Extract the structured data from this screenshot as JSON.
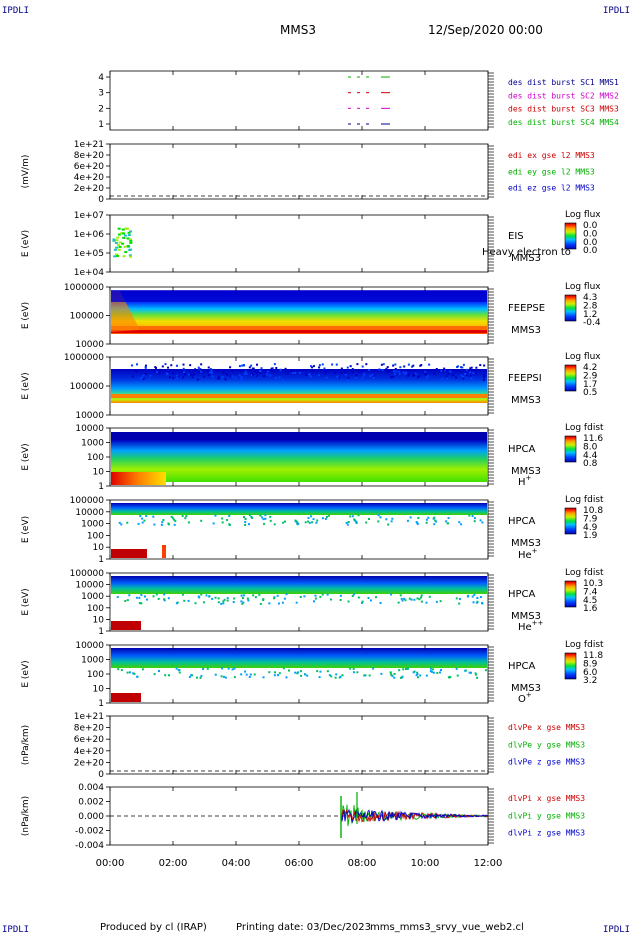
{
  "header": {
    "spacecraft": "MMS3",
    "date": "12/Sep/2020 00:00",
    "corner_left": "IPDLI",
    "corner_right": "IPDLI"
  },
  "footer": {
    "produced": "Produced by cl (IRAP)",
    "printing": "Printing date: 03/Dec/2023",
    "script": "mms_mms3_srvy_vue_web2.cl"
  },
  "colors": {
    "mms1": "#00008b",
    "mms2": "#d000d0",
    "mms3": "#cc0000",
    "mms4": "#00b000",
    "x": "#cc0000",
    "y": "#00b000",
    "z": "#0000cc"
  },
  "chart_data": [
    {
      "id": "burst",
      "type": "scatter",
      "yticks": [
        "1",
        "2",
        "3",
        "4"
      ],
      "legend": [
        {
          "label": "des dist burst SC1 MMS1",
          "color": "#00008b"
        },
        {
          "label": "des dist burst SC2 MMS2",
          "color": "#d000d0"
        },
        {
          "label": "des dist burst SC3 MMS3",
          "color": "#cc0000"
        },
        {
          "label": "des dist burst SC4 MMS4",
          "color": "#00b000"
        }
      ]
    },
    {
      "id": "edi",
      "type": "line",
      "ylabel": "(mV/m)",
      "yticks": [
        "0",
        "2e+20",
        "4e+20",
        "6e+20",
        "8e+20",
        "1e+21"
      ],
      "legend": [
        {
          "label": "edi ex gse l2 MMS3",
          "color": "#cc0000"
        },
        {
          "label": "edi ey gse l2 MMS3",
          "color": "#00b000"
        },
        {
          "label": "edi ez gse l2 MMS3",
          "color": "#0000cc"
        }
      ]
    },
    {
      "id": "eis",
      "type": "heatmap",
      "ylabel": "E (eV)",
      "yticks": [
        "1e+04",
        "1e+05",
        "1e+06",
        "1e+07"
      ],
      "right": [
        "EIS",
        "MMS3"
      ],
      "overlay": "Heavy electron to",
      "cbar_title": "Log flux",
      "cbar_ticks": [
        "0.0",
        "0.0",
        "0.0",
        "0.0"
      ]
    },
    {
      "id": "feepse",
      "type": "heatmap",
      "ylabel": "E (eV)",
      "yticks": [
        "10000",
        "100000",
        "1000000"
      ],
      "right": [
        "FEEPSE",
        "MMS3"
      ],
      "cbar_title": "Log flux",
      "cbar_ticks": [
        "4.3",
        "2.8",
        "1.2",
        "-0.4"
      ]
    },
    {
      "id": "feepsi",
      "type": "heatmap",
      "ylabel": "E (eV)",
      "yticks": [
        "10000",
        "100000",
        "1000000"
      ],
      "right": [
        "FEEPSI",
        "MMS3"
      ],
      "cbar_title": "Log flux",
      "cbar_ticks": [
        "4.2",
        "2.9",
        "1.7",
        "0.5"
      ]
    },
    {
      "id": "hpca_h",
      "type": "heatmap",
      "ylabel": "E (eV)",
      "yticks": [
        "1",
        "10",
        "100",
        "1000",
        "10000"
      ],
      "right": [
        "HPCA",
        "MMS3"
      ],
      "species": "H",
      "species_sup": "+",
      "cbar_title": "Log fdist",
      "cbar_ticks": [
        "11.6",
        "8.0",
        "4.4",
        "0.8"
      ]
    },
    {
      "id": "hpca_he",
      "type": "heatmap",
      "ylabel": "E (eV)",
      "yticks": [
        "1",
        "10",
        "100",
        "1000",
        "10000",
        "100000"
      ],
      "right": [
        "HPCA",
        "MMS3"
      ],
      "species": "He",
      "species_sup": "+",
      "cbar_title": "Log fdist",
      "cbar_ticks": [
        "10.8",
        "7.9",
        "4.9",
        "1.9"
      ]
    },
    {
      "id": "hpca_he2",
      "type": "heatmap",
      "ylabel": "E (eV)",
      "yticks": [
        "1",
        "10",
        "100",
        "1000",
        "10000",
        "100000"
      ],
      "right": [
        "HPCA",
        "MMS3"
      ],
      "species": "He",
      "species_sup": "++",
      "cbar_title": "Log fdist",
      "cbar_ticks": [
        "10.3",
        "7.4",
        "4.5",
        "1.6"
      ]
    },
    {
      "id": "hpca_o",
      "type": "heatmap",
      "ylabel": "E (eV)",
      "yticks": [
        "1",
        "10",
        "100",
        "1000",
        "10000"
      ],
      "right": [
        "HPCA",
        "MMS3"
      ],
      "species": "O",
      "species_sup": "+",
      "cbar_title": "Log fdist",
      "cbar_ticks": [
        "11.8",
        "8.9",
        "6.0",
        "3.2"
      ]
    },
    {
      "id": "dlvpe",
      "type": "line",
      "ylabel": "(nPa/km)",
      "yticks": [
        "0",
        "2e+20",
        "4e+20",
        "6e+20",
        "8e+20",
        "1e+21"
      ],
      "legend": [
        {
          "label": "dlvPe x gse MMS3",
          "color": "#cc0000"
        },
        {
          "label": "dlvPe y gse MMS3",
          "color": "#00b000"
        },
        {
          "label": "dlvPe z gse MMS3",
          "color": "#0000cc"
        }
      ]
    },
    {
      "id": "dlvpi",
      "type": "line",
      "ylabel": "(nPa/km)",
      "yticks": [
        "-0.004",
        "-0.002",
        "0.000",
        "0.002",
        "0.004"
      ],
      "legend": [
        {
          "label": "dlvPi x gse MMS3",
          "color": "#cc0000"
        },
        {
          "label": "dlvPi y gse MMS3",
          "color": "#00b000"
        },
        {
          "label": "dlvPi z gse MMS3",
          "color": "#0000cc"
        }
      ]
    }
  ],
  "xaxis": {
    "ticks": [
      "00:00",
      "02:00",
      "04:00",
      "06:00",
      "08:00",
      "10:00",
      "12:00"
    ]
  }
}
